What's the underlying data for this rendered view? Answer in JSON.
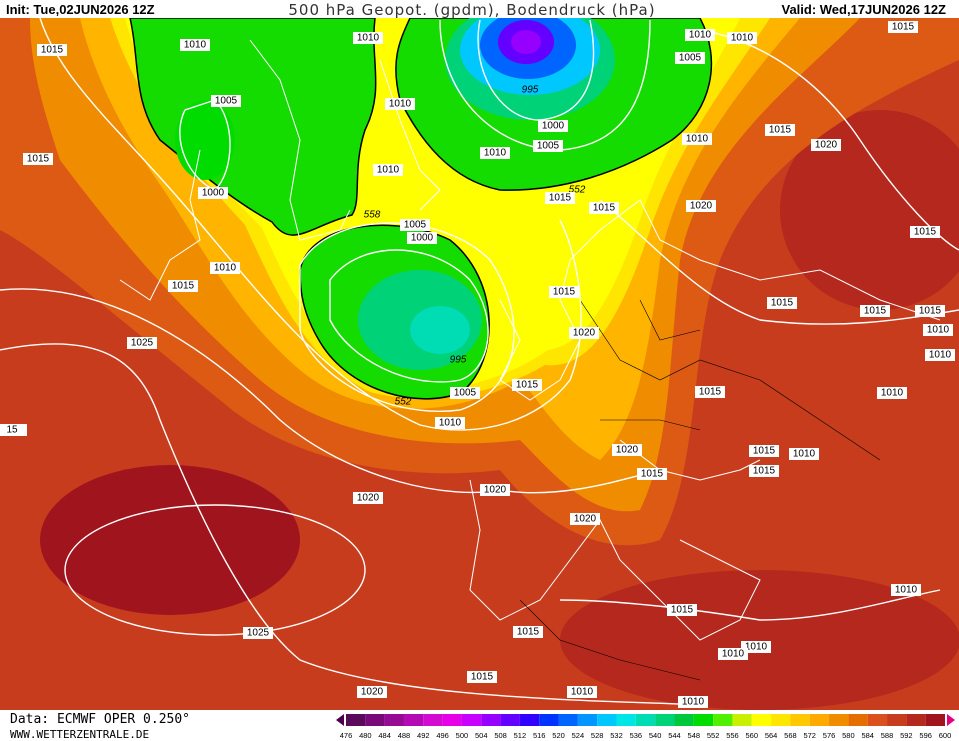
{
  "header": {
    "init": "Init: Tue,02JUN2026 12Z",
    "title": "500 hPa Geopot. (gpdm), Bodendruck (hPa)",
    "valid": "Valid: Wed,17JUN2026 12Z"
  },
  "footer": {
    "source": "Data: ECMWF OPER 0.250°",
    "site": "WWW.WETTERZENTRALE.DE"
  },
  "colorbar": {
    "ticks": [
      476,
      480,
      484,
      488,
      492,
      496,
      500,
      504,
      508,
      512,
      516,
      520,
      524,
      528,
      532,
      536,
      540,
      544,
      548,
      552,
      556,
      560,
      564,
      568,
      572,
      576,
      580,
      584,
      588,
      592,
      596,
      600
    ],
    "colors": [
      "#5a0a5a",
      "#7a0a7a",
      "#960a96",
      "#b40ab4",
      "#d20ad2",
      "#e600e6",
      "#c800ff",
      "#9600ff",
      "#6400ff",
      "#3200ff",
      "#0032ff",
      "#0064ff",
      "#0096ff",
      "#00c8ff",
      "#00e6e6",
      "#00dcb4",
      "#00d278",
      "#00c83c",
      "#00dc00",
      "#50f000",
      "#c8f000",
      "#ffff00",
      "#ffe600",
      "#ffc800",
      "#ffaa00",
      "#f08c00",
      "#e66e00",
      "#dc501e",
      "#c83c1e",
      "#b4281e",
      "#a0141e"
    ]
  },
  "contour_labels": [
    1015,
    1010,
    1010,
    1010,
    1010,
    1015,
    1005,
    1005,
    995,
    1000,
    1010,
    1015,
    1020,
    1010,
    1005,
    1010,
    1015,
    1010,
    1000,
    558,
    552,
    1015,
    1015,
    1020,
    1005,
    1000,
    1015,
    1010,
    1015,
    1015,
    1015,
    1015,
    1015,
    1010,
    1020,
    1025,
    995,
    1010,
    1015,
    1005,
    552,
    1015,
    1010,
    1010,
    15,
    1020,
    1015,
    1010,
    1015,
    1015,
    1020,
    1020,
    1020,
    1010,
    1015,
    1025,
    1015,
    1010,
    1010,
    1015,
    1020,
    1010,
    1010
  ]
}
